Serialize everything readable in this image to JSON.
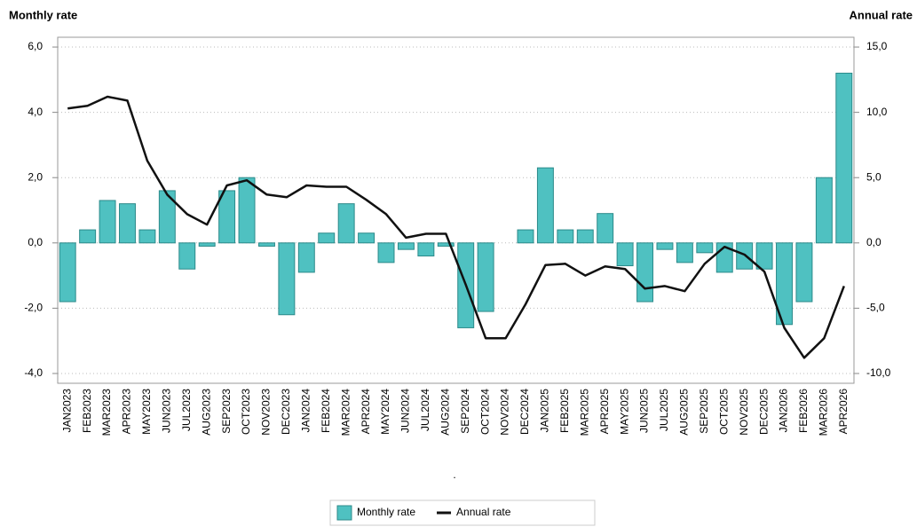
{
  "chart_data": {
    "type": "bar",
    "y_label": "Monthly rate",
    "y2_label": "Annual rate",
    "x_label": ".",
    "categories": [
      "JAN2023",
      "FEB2023",
      "MAR2023",
      "APR2023",
      "MAY2023",
      "JUN2023",
      "JUL2023",
      "AUG2023",
      "SEP2023",
      "OCT2023",
      "NOV2023",
      "DEC2023",
      "JAN2024",
      "FEB2024",
      "MAR2024",
      "APR2024",
      "MAY2024",
      "JUN2024",
      "JUL2024",
      "AUG2024",
      "SEP2024",
      "OCT2024",
      "NOV2024",
      "DEC2024",
      "JAN2025",
      "FEB2025",
      "MAR2025",
      "APR2025",
      "MAY2025",
      "JUN2025",
      "JUL2025",
      "AUG2025",
      "SEP2025",
      "OCT2025",
      "NOV2025",
      "DEC2025",
      "JAN2026",
      "FEB2026",
      "MAR2026",
      "APR2026"
    ],
    "series": [
      {
        "name": "Monthly rate",
        "type": "bar",
        "color": "#4fc1c1",
        "values": [
          -1.8,
          0.4,
          1.3,
          1.2,
          0.4,
          1.6,
          -0.8,
          -0.1,
          1.6,
          2.0,
          -0.1,
          -2.2,
          -0.9,
          0.3,
          1.2,
          0.3,
          -0.6,
          -0.2,
          -0.4,
          -0.1,
          -2.6,
          -2.1,
          0.0,
          0.4,
          2.3,
          0.4,
          0.4,
          0.9,
          -0.7,
          -1.8,
          -0.2,
          -0.6,
          -0.3,
          -0.9,
          -0.8,
          -0.8,
          -2.5,
          -1.8,
          2.0,
          5.2
        ]
      },
      {
        "name": "Annual rate",
        "type": "line",
        "axis": "y2",
        "color": "#111111",
        "values": [
          10.3,
          10.5,
          11.2,
          10.9,
          6.3,
          3.7,
          2.2,
          1.4,
          4.4,
          4.8,
          3.7,
          3.5,
          4.4,
          4.3,
          4.3,
          3.3,
          2.2,
          0.4,
          0.7,
          0.7,
          -3.2,
          -7.3,
          -7.3,
          -4.7,
          -1.7,
          -1.6,
          -2.5,
          -1.8,
          -2.0,
          -3.5,
          -3.3,
          -3.7,
          -1.6,
          -0.3,
          -0.9,
          -2.2,
          -6.5,
          -8.8,
          -7.3,
          -3.3
        ]
      }
    ],
    "ylim": [
      -4.3,
      6.3
    ],
    "yticks": [
      {
        "value": -4,
        "label": "-4,0"
      },
      {
        "value": -2,
        "label": "-2,0"
      },
      {
        "value": 0,
        "label": "0,0"
      },
      {
        "value": 2,
        "label": "2,0"
      },
      {
        "value": 4,
        "label": "4,0"
      },
      {
        "value": 6,
        "label": "6,0"
      }
    ],
    "y2lim": [
      -10.75,
      15.75
    ],
    "y2ticks": [
      {
        "value": -10,
        "label": "-10,0"
      },
      {
        "value": -5,
        "label": "-5,0"
      },
      {
        "value": 0,
        "label": "0,0"
      },
      {
        "value": 5,
        "label": "5,0"
      },
      {
        "value": 10,
        "label": "10,0"
      },
      {
        "value": 15,
        "label": "15,0"
      }
    ],
    "grid": true,
    "legend": "bottom"
  }
}
